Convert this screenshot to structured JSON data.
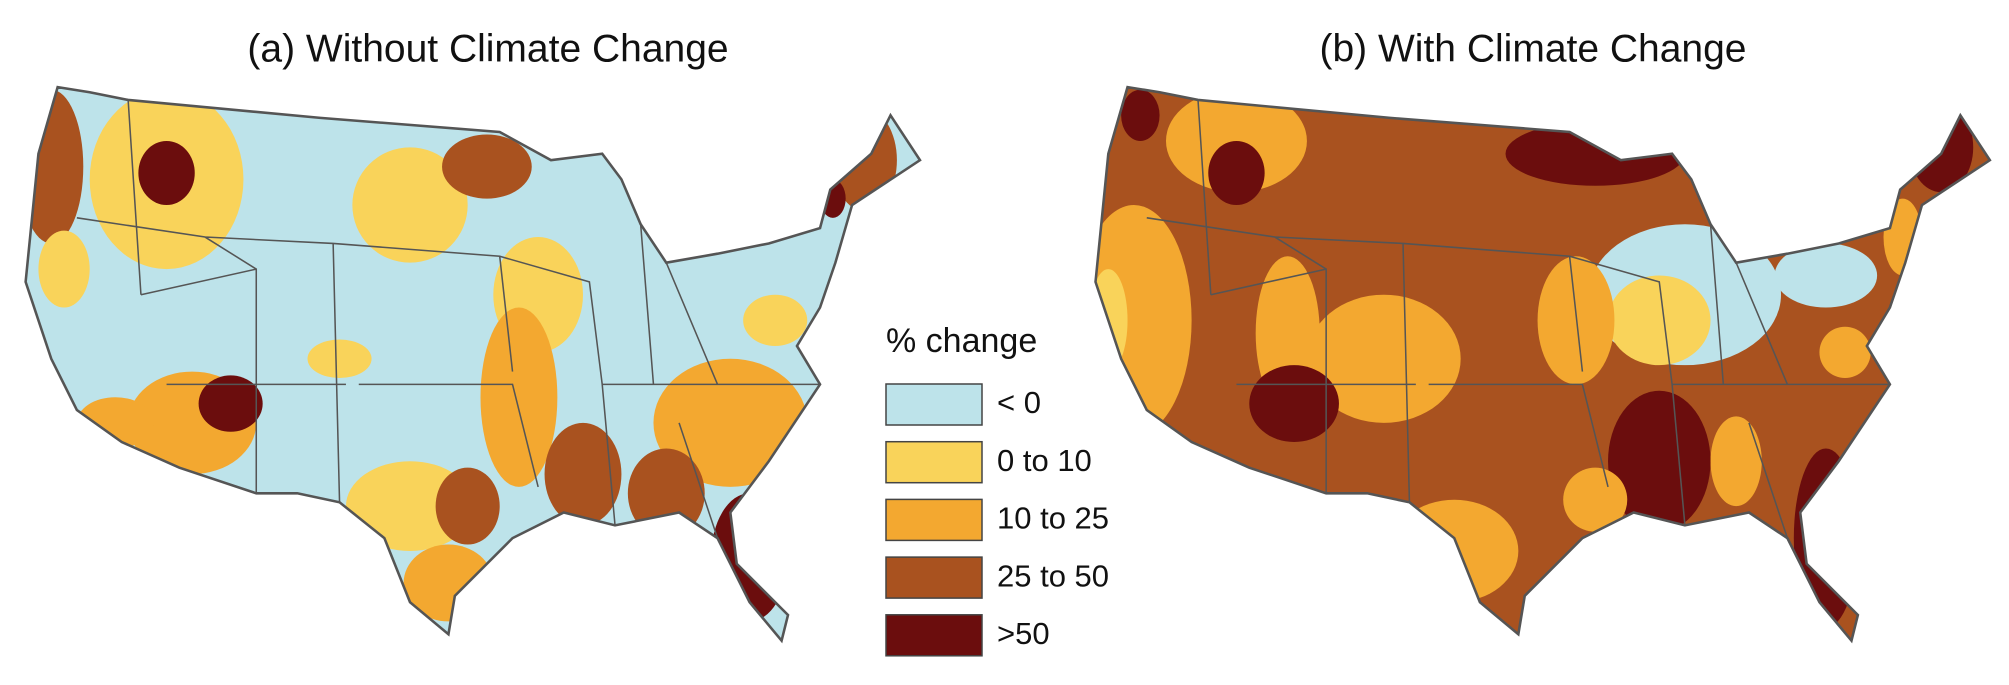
{
  "maps": [
    {
      "title": "(a) Without Climate Change"
    },
    {
      "title": "(b) With Climate Change"
    }
  ],
  "legend": {
    "title": "% change",
    "items": [
      {
        "label": "< 0",
        "color": "#bde3ea"
      },
      {
        "label": "0 to 10",
        "color": "#f9d35a"
      },
      {
        "label": "10 to 25",
        "color": "#f3a830"
      },
      {
        "label": "25 to 50",
        "color": "#a9521f"
      },
      {
        "label": ">50",
        "color": "#6b0d0d"
      }
    ]
  }
}
